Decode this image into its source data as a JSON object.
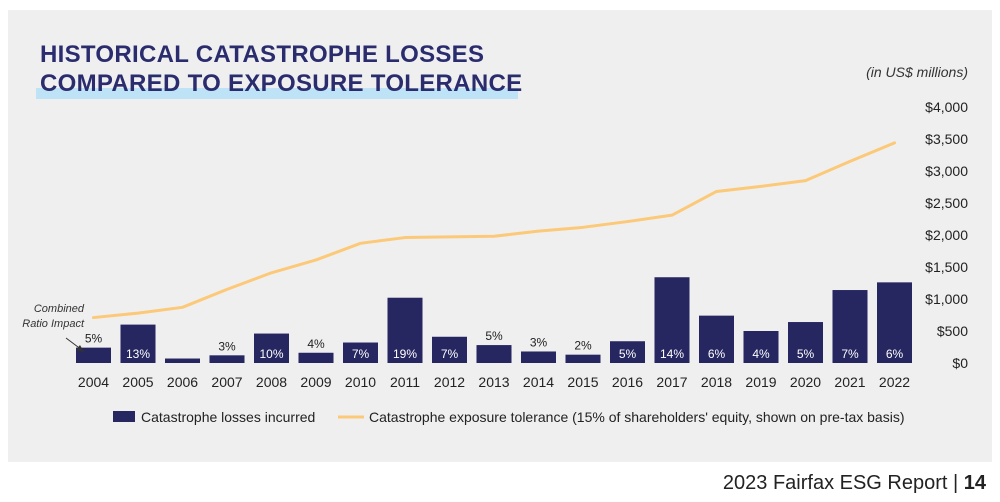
{
  "title_lines": [
    "HISTORICAL CATASTROPHE LOSSES",
    "COMPARED TO EXPOSURE TOLERANCE"
  ],
  "units_note": "(in US$ millions)",
  "annotation": "Combined Ratio Impact",
  "footer": {
    "text": "2023 Fairfax ESG Report | ",
    "page": "14"
  },
  "colors": {
    "bars": "#262661",
    "line": "#fcc978",
    "title": "#2a2c6e",
    "highlight": "#bfe3f6"
  },
  "chart_data": {
    "type": "bar",
    "categories": [
      "2004",
      "2005",
      "2006",
      "2007",
      "2008",
      "2009",
      "2010",
      "2011",
      "2012",
      "2013",
      "2014",
      "2015",
      "2016",
      "2017",
      "2018",
      "2019",
      "2020",
      "2021",
      "2022"
    ],
    "series": [
      {
        "name": "Catastrophe losses incurred",
        "type": "bar",
        "values": [
          240,
          600,
          70,
          120,
          460,
          160,
          320,
          1020,
          410,
          280,
          180,
          130,
          340,
          1340,
          740,
          500,
          640,
          1140,
          1260
        ],
        "labels": [
          "5%",
          "13%",
          "",
          "3%",
          "10%",
          "4%",
          "7%",
          "19%",
          "7%",
          "5%",
          "3%",
          "2%",
          "5%",
          "14%",
          "6%",
          "4%",
          "5%",
          "7%",
          "6%"
        ]
      },
      {
        "name": "Catastrophe exposure tolerance (15% of shareholders' equity, shown on pre-tax basis)",
        "type": "line",
        "values": [
          710,
          780,
          870,
          1150,
          1410,
          1610,
          1870,
          1960,
          1970,
          1980,
          2060,
          2120,
          2210,
          2310,
          2680,
          2760,
          2850,
          3150,
          3440
        ]
      }
    ],
    "y_ticks": [
      "$4,000",
      "$3,500",
      "$3,000",
      "$2,500",
      "$2,000",
      "$1,500",
      "$1,000",
      "$500",
      "$0"
    ],
    "ylim": [
      0,
      4000
    ]
  }
}
